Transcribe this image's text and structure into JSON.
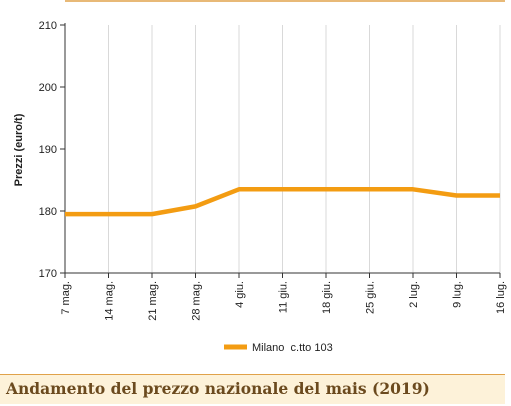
{
  "caption": "Andamento del prezzo nazionale del mais (2019)",
  "colors": {
    "series": "#f39c12",
    "accent_line": "#e0a24a",
    "caption_bg": "#fdf2d9",
    "grid": "#d9d9d9"
  },
  "chart_data": {
    "type": "line",
    "categories": [
      "7 mag.",
      "14 mag.",
      "21 mag.",
      "28 mag.",
      "4 giu.",
      "11 giu.",
      "18 giu.",
      "25 giu.",
      "2 lug.",
      "9 lug.",
      "16 lug."
    ],
    "series": [
      {
        "name": "Milano  c.tto 103",
        "values": [
          179.5,
          179.5,
          179.5,
          180.75,
          183.5,
          183.5,
          183.5,
          183.5,
          183.5,
          182.5,
          182.5
        ]
      }
    ],
    "ylabel": "Prezzi (euro/t)",
    "ylim": [
      170,
      210
    ],
    "yticks": [
      170,
      180,
      190,
      200,
      210
    ],
    "grid": "vertical",
    "legend": "bottom-center"
  }
}
